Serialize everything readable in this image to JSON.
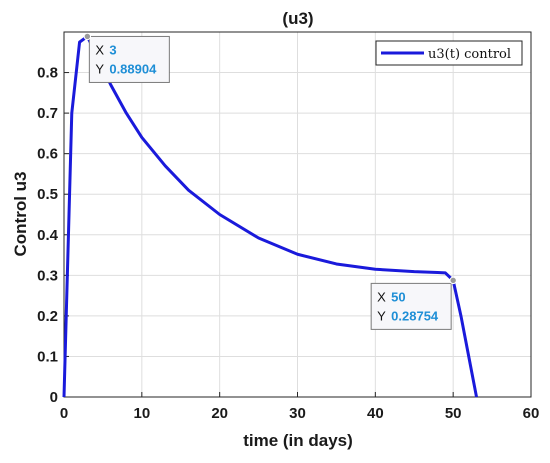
{
  "chart_data": {
    "type": "line",
    "title": "(u3)",
    "xlabel": "time (in days)",
    "ylabel": "Control u3",
    "xlim": [
      0,
      60
    ],
    "ylim": [
      0,
      0.9
    ],
    "xticks": [
      0,
      10,
      20,
      30,
      40,
      50,
      60
    ],
    "yticks": [
      0,
      0.1,
      0.2,
      0.3,
      0.4,
      0.5,
      0.6,
      0.7,
      0.8
    ],
    "grid": true,
    "legend_position": "top-right",
    "series": [
      {
        "name": "u3(t) control",
        "color": "#1a1adb",
        "x": [
          0,
          1,
          2,
          3,
          4,
          6,
          8,
          10,
          13,
          16,
          20,
          25,
          30,
          35,
          40,
          45,
          48,
          49,
          50,
          51,
          52,
          53
        ],
        "y": [
          0,
          0.7,
          0.875,
          0.88904,
          0.85,
          0.77,
          0.7,
          0.64,
          0.57,
          0.51,
          0.45,
          0.392,
          0.352,
          0.328,
          0.315,
          0.309,
          0.307,
          0.306,
          0.28754,
          0.2,
          0.1,
          0
        ]
      }
    ],
    "datatips": [
      {
        "x_key": "X",
        "x_value": "3",
        "y_key": "Y",
        "y_value": "0.88904",
        "x": 3,
        "y": 0.88904
      },
      {
        "x_key": "X",
        "x_value": "50",
        "y_key": "Y",
        "y_value": "0.28754",
        "x": 50,
        "y": 0.28754
      }
    ]
  }
}
